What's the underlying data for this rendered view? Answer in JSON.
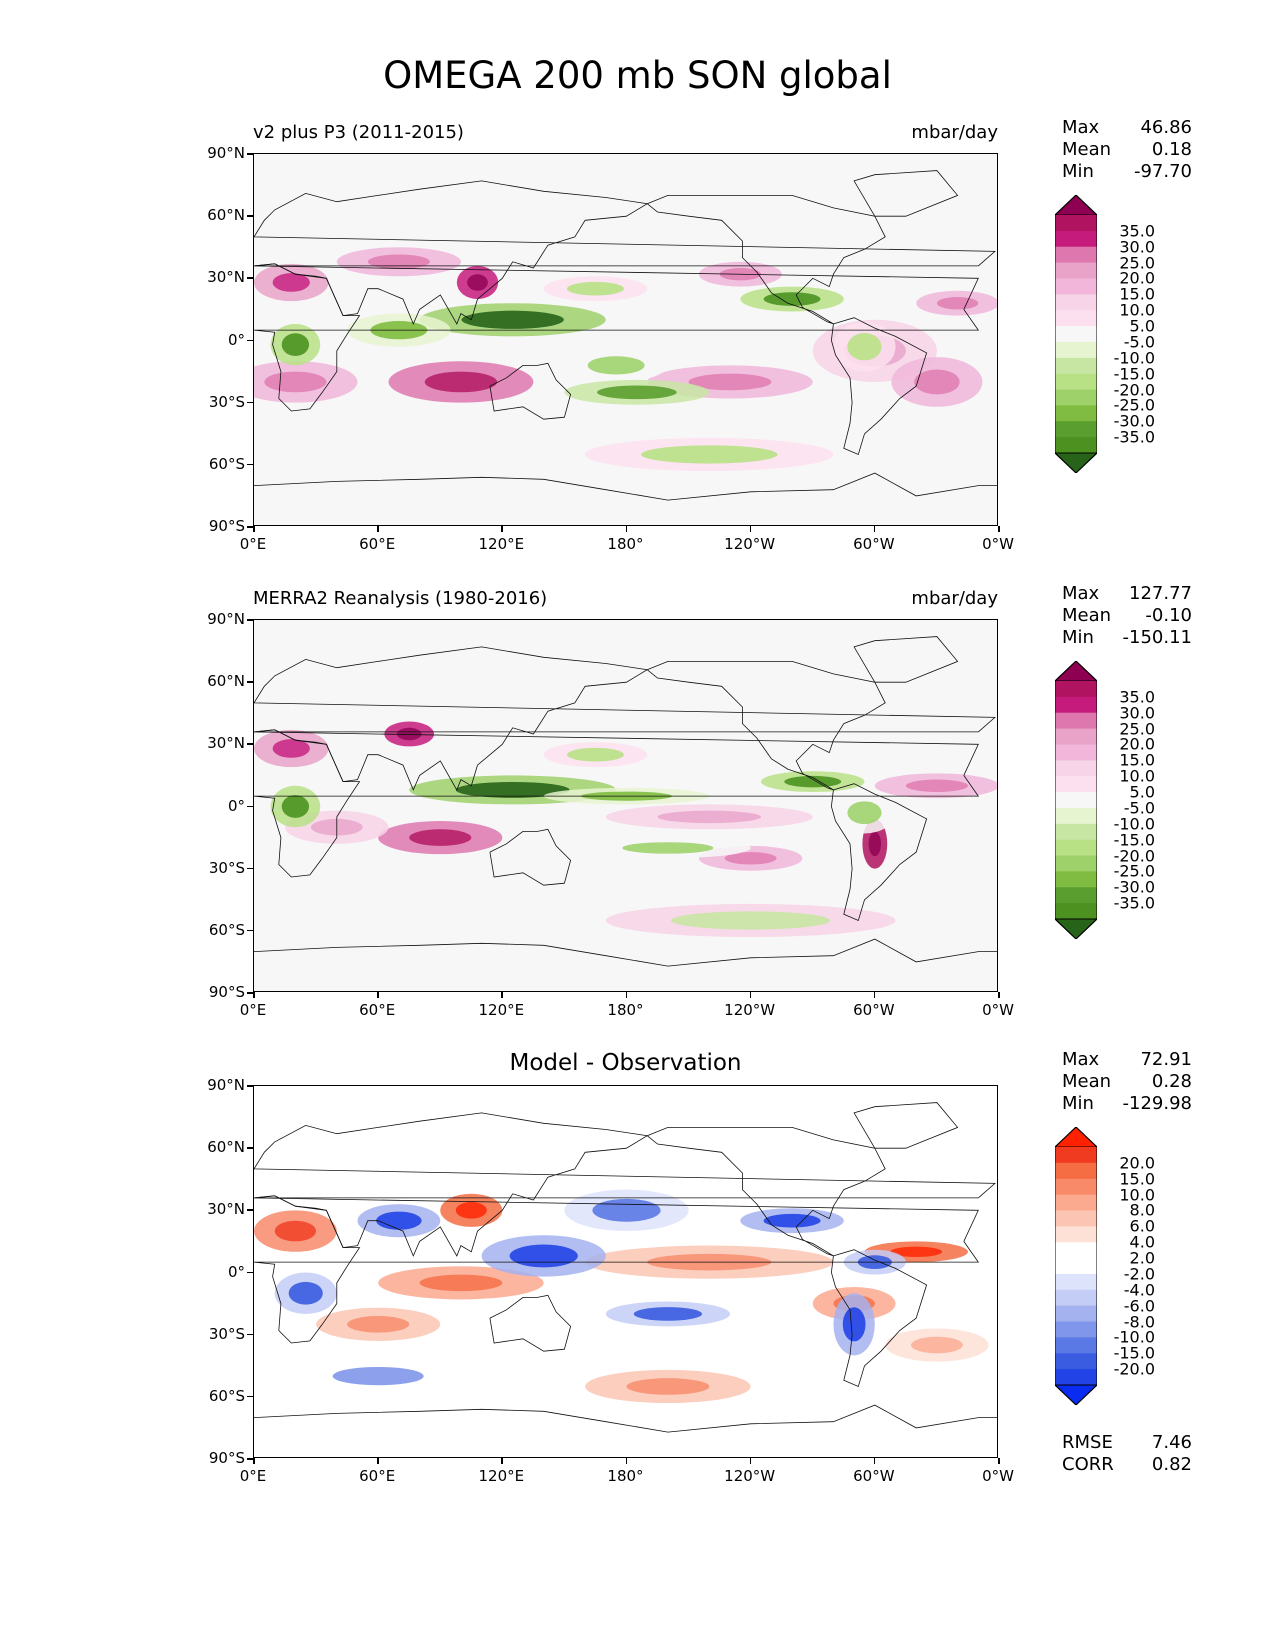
{
  "figure": {
    "title": "OMEGA 200 mb SON global"
  },
  "chart_data": [
    {
      "type": "heatmap",
      "title": "v2 plus P3 (2011-2015)",
      "units": "mbar/day",
      "stats": {
        "max": "46.86",
        "mean": "0.18",
        "min": "-97.70"
      },
      "xlabels": [
        "0°E",
        "60°E",
        "120°E",
        "180°",
        "120°W",
        "60°W",
        "0°W"
      ],
      "ylabels": [
        "90°N",
        "60°N",
        "30°N",
        "0°",
        "30°S",
        "60°S",
        "90°S"
      ],
      "colorbar_levels": [
        "35.0",
        "30.0",
        "25.0",
        "20.0",
        "15.0",
        "10.0",
        "5.0",
        "-5.0",
        "-10.0",
        "-15.0",
        "-20.0",
        "-25.0",
        "-30.0",
        "-35.0"
      ],
      "colorbar_colors": [
        "#8e0152",
        "#b0135f",
        "#c51b7d",
        "#de77ae",
        "#e9a3c9",
        "#f1b6da",
        "#f7d4e8",
        "#fde0ef",
        "#f7f7f7",
        "#e6f5d0",
        "#c8e6a3",
        "#b8e186",
        "#9fd16b",
        "#7fbc41",
        "#5a9e2f",
        "#4d9221",
        "#276419"
      ]
    },
    {
      "type": "heatmap",
      "title": "MERRA2 Reanalysis (1980-2016)",
      "units": "mbar/day",
      "stats": {
        "max": "127.77",
        "mean": "-0.10",
        "min": "-150.11"
      },
      "xlabels": [
        "0°E",
        "60°E",
        "120°E",
        "180°",
        "120°W",
        "60°W",
        "0°W"
      ],
      "ylabels": [
        "90°N",
        "60°N",
        "30°N",
        "0°",
        "30°S",
        "60°S",
        "90°S"
      ],
      "colorbar_levels": [
        "35.0",
        "30.0",
        "25.0",
        "20.0",
        "15.0",
        "10.0",
        "5.0",
        "-5.0",
        "-10.0",
        "-15.0",
        "-20.0",
        "-25.0",
        "-30.0",
        "-35.0"
      ],
      "colorbar_colors": [
        "#8e0152",
        "#b0135f",
        "#c51b7d",
        "#de77ae",
        "#e9a3c9",
        "#f1b6da",
        "#f7d4e8",
        "#fde0ef",
        "#f7f7f7",
        "#e6f5d0",
        "#c8e6a3",
        "#b8e186",
        "#9fd16b",
        "#7fbc41",
        "#5a9e2f",
        "#4d9221",
        "#276419"
      ]
    },
    {
      "type": "heatmap",
      "title": "Model - Observation",
      "units": "",
      "stats": {
        "max": "72.91",
        "mean": "0.28",
        "min": "-129.98"
      },
      "rmse": "7.46",
      "corr": "0.82",
      "xlabels": [
        "0°E",
        "60°E",
        "120°E",
        "180°",
        "120°W",
        "60°W",
        "0°W"
      ],
      "ylabels": [
        "90°N",
        "60°N",
        "30°N",
        "0°",
        "30°S",
        "60°S",
        "90°S"
      ],
      "colorbar_levels": [
        "20.0",
        "15.0",
        "10.0",
        "8.0",
        "6.0",
        "4.0",
        "2.0",
        "-2.0",
        "-4.0",
        "-6.0",
        "-8.0",
        "-10.0",
        "-15.0",
        "-20.0"
      ],
      "colorbar_colors": [
        "#ff2200",
        "#f03b20",
        "#f46d43",
        "#f88a6a",
        "#fba98f",
        "#fcc5b3",
        "#fde0d6",
        "#ffffff",
        "#ffffff",
        "#dde3fb",
        "#c3cdf6",
        "#a4b3f0",
        "#8096ea",
        "#5b79e4",
        "#3a5ce0",
        "#2244e6",
        "#0a2cf0"
      ]
    }
  ],
  "labels": {
    "max": "Max",
    "mean": "Mean",
    "min": "Min",
    "rmse": "RMSE",
    "corr": "CORR"
  }
}
